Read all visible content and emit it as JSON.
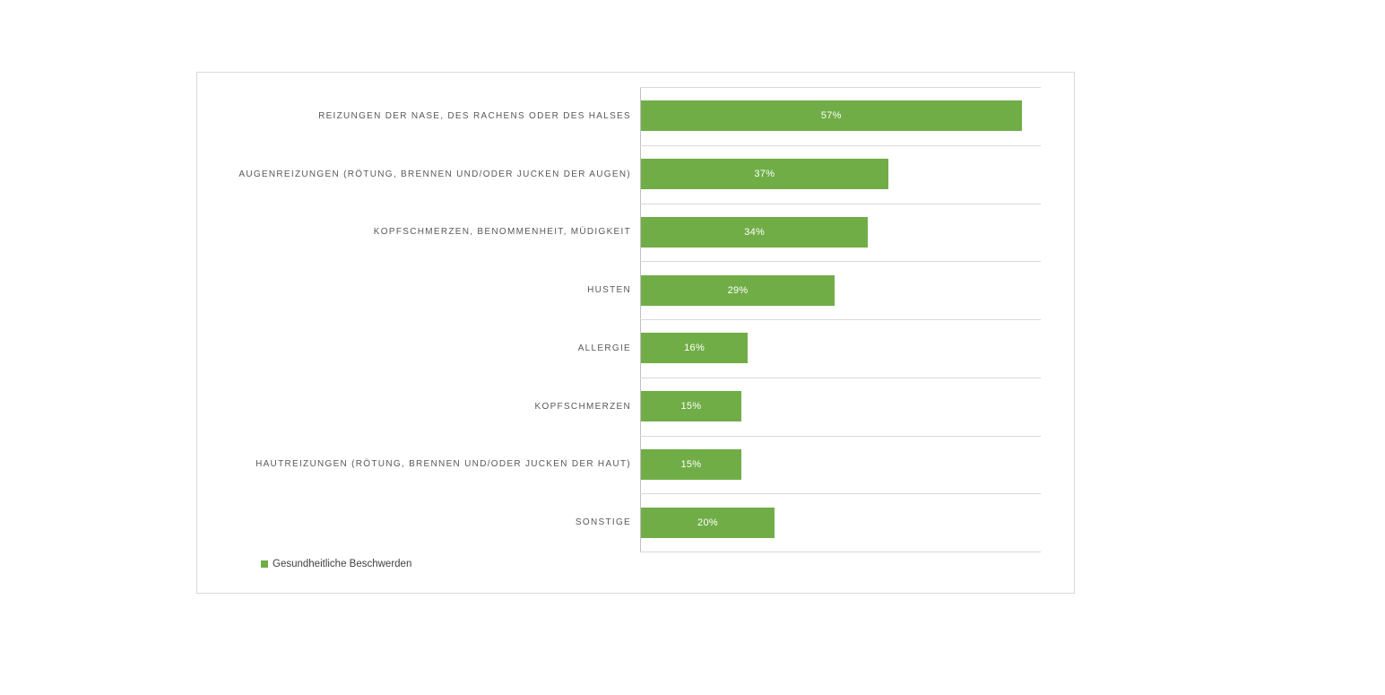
{
  "chart_data": {
    "type": "bar",
    "orientation": "horizontal",
    "title": "",
    "categories": [
      "REIZUNGEN DER NASE, DES RACHENS ODER DES HALSES",
      "AUGENREIZUNGEN (RÖTUNG, BRENNEN UND/ODER JUCKEN DER AUGEN)",
      "KOPFSCHMERZEN, BENOMMENHEIT, MÜDIGKEIT",
      "HUSTEN",
      "ALLERGIE",
      "KOPFSCHMERZEN",
      "HAUTREIZUNGEN (RÖTUNG, BRENNEN UND/ODER JUCKEN DER HAUT)",
      "SONSTIGE"
    ],
    "values": [
      57,
      37,
      34,
      29,
      16,
      15,
      15,
      20
    ],
    "data_labels": [
      "57%",
      "37%",
      "34%",
      "29%",
      "16%",
      "15%",
      "15%",
      "20%"
    ],
    "series_name": "Gesundheitliche Beschwerden",
    "xlim": [
      0,
      60
    ],
    "grid": "category separator lines, on",
    "legend_position": "bottom-left",
    "bar_color": "#70ad47",
    "category_label_color": "#595959",
    "data_label_color": "#ffffff",
    "gridline_color": "#d9d9d9",
    "axis_line_color": "#bfbfbf",
    "chart_border_color": "#d9d9d9"
  }
}
